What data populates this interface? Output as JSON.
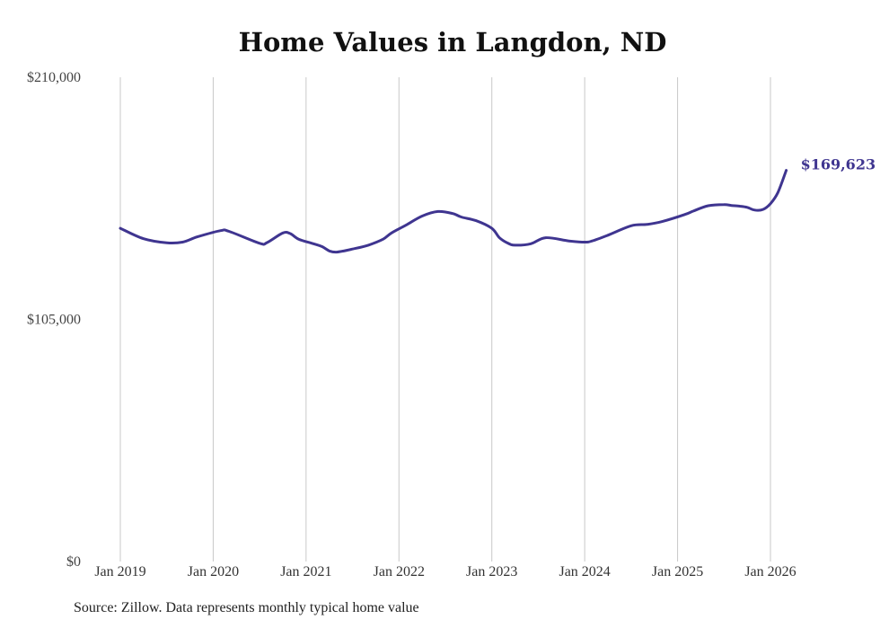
{
  "chart_data": {
    "type": "line",
    "title": "Home Values in Langdon, ND",
    "source": "Source: Zillow. Data represents monthly typical home value",
    "xlabel": "",
    "ylabel": "",
    "ylim": [
      0,
      210000
    ],
    "y_ticks": [
      {
        "value": 210000,
        "label": "$210,000"
      },
      {
        "value": 105000,
        "label": "$105,000"
      },
      {
        "value": 0,
        "label": "$0"
      }
    ],
    "x_ticks": [
      {
        "value": 2019,
        "label": "Jan 2019"
      },
      {
        "value": 2020,
        "label": "Jan 2020"
      },
      {
        "value": 2021,
        "label": "Jan 2021"
      },
      {
        "value": 2022,
        "label": "Jan 2022"
      },
      {
        "value": 2023,
        "label": "Jan 2023"
      },
      {
        "value": 2024,
        "label": "Jan 2024"
      },
      {
        "value": 2025,
        "label": "Jan 2025"
      },
      {
        "value": 2026,
        "label": "Jan 2026"
      }
    ],
    "xlim": [
      2019,
      2026.17
    ],
    "grid": "vertical",
    "line_color": "#3f3590",
    "end_label": "$169,623",
    "series": [
      {
        "name": "Typical home value",
        "x": [
          2019.0,
          2019.25,
          2019.5,
          2019.67,
          2019.83,
          2020.08,
          2020.17,
          2020.5,
          2020.58,
          2020.75,
          2020.83,
          2020.92,
          2021.08,
          2021.17,
          2021.25,
          2021.33,
          2021.5,
          2021.67,
          2021.83,
          2021.92,
          2022.08,
          2022.25,
          2022.42,
          2022.58,
          2022.67,
          2022.83,
          2023.0,
          2023.08,
          2023.17,
          2023.25,
          2023.42,
          2023.58,
          2023.83,
          2024.0,
          2024.08,
          2024.25,
          2024.5,
          2024.67,
          2024.83,
          2025.08,
          2025.17,
          2025.33,
          2025.5,
          2025.58,
          2025.67,
          2025.75,
          2025.83,
          2025.92,
          2026.0,
          2026.08,
          2026.17
        ],
        "values": [
          144500,
          140000,
          138200,
          138500,
          140800,
          143500,
          143200,
          138000,
          138300,
          142500,
          142200,
          139800,
          137800,
          136600,
          134700,
          134200,
          135500,
          137200,
          139800,
          142500,
          146000,
          149800,
          151800,
          150900,
          149400,
          147800,
          144500,
          140500,
          138100,
          137200,
          137800,
          140400,
          139000,
          138500,
          139000,
          141500,
          145600,
          146200,
          147400,
          150500,
          152000,
          154300,
          154800,
          154400,
          154100,
          153600,
          152400,
          152700,
          155200,
          160000,
          169623
        ]
      }
    ]
  }
}
